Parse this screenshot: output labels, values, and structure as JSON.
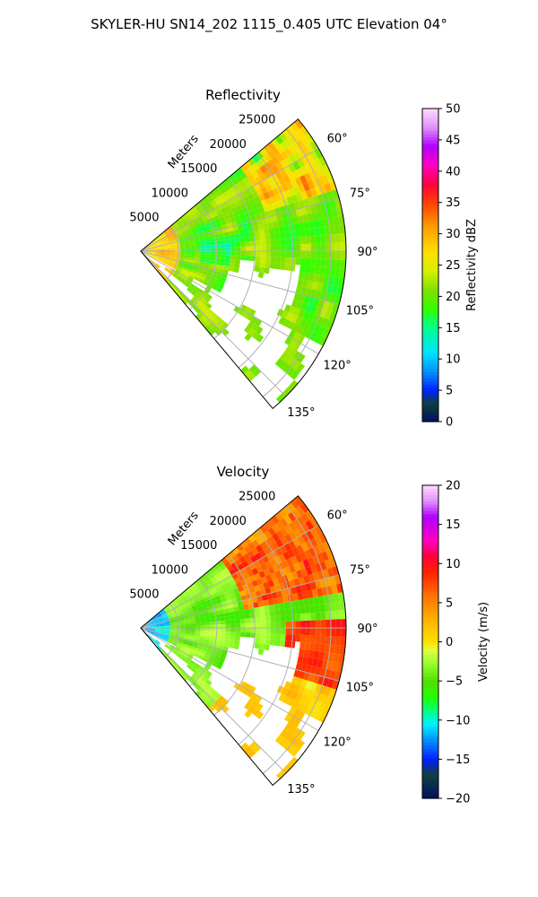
{
  "figure": {
    "suptitle": "SKYLER-HU  SN14_202  1115_0.405 UTC Elevation 04°"
  },
  "colors": {
    "grid": "#b0b0b0",
    "frame": "#000000"
  },
  "chart_data": [
    {
      "type": "heatmap",
      "projection": "polar-sector",
      "title": "Reflectivity",
      "range_label": "Meters",
      "range_ticks": [
        5000,
        10000,
        15000,
        20000,
        25000
      ],
      "range_tick_labels": [
        "5000",
        "10000",
        "15000",
        "20000",
        "25000"
      ],
      "rmax": 27000,
      "azimuth_range_deg": [
        50,
        140
      ],
      "azimuth_ticks": [
        60,
        75,
        90,
        105,
        120,
        135
      ],
      "azimuth_tick_labels": [
        "60°",
        "75°",
        "90°",
        "105°",
        "120°",
        "135°"
      ],
      "grid": true,
      "colorbar": {
        "label": "Reflectivity dBZ",
        "min": 0,
        "max": 50,
        "ticks": [
          0,
          5,
          10,
          15,
          20,
          25,
          30,
          35,
          40,
          45,
          50
        ],
        "tick_labels": [
          "0",
          "5",
          "10",
          "15",
          "20",
          "25",
          "30",
          "35",
          "40",
          "45",
          "50"
        ],
        "stops": [
          [
            0,
            "#001060"
          ],
          [
            3,
            "#104040"
          ],
          [
            5,
            "#0020ff"
          ],
          [
            8,
            "#0090ff"
          ],
          [
            11,
            "#00e0ff"
          ],
          [
            15,
            "#00ff90"
          ],
          [
            18,
            "#30ff00"
          ],
          [
            21,
            "#80e000"
          ],
          [
            24,
            "#d0f000"
          ],
          [
            27,
            "#ffe000"
          ],
          [
            31,
            "#ffa000"
          ],
          [
            35,
            "#ff4000"
          ],
          [
            38,
            "#ff0040"
          ],
          [
            41,
            "#ff00c0"
          ],
          [
            44,
            "#b000ff"
          ],
          [
            47,
            "#e090ff"
          ],
          [
            50,
            "#ffd8ff"
          ]
        ]
      },
      "field": {
        "base_value": 20,
        "spread": 4.5
      }
    },
    {
      "type": "heatmap",
      "projection": "polar-sector",
      "title": "Velocity",
      "range_label": "Meters",
      "range_ticks": [
        5000,
        10000,
        15000,
        20000,
        25000
      ],
      "range_tick_labels": [
        "5000",
        "10000",
        "15000",
        "20000",
        "25000"
      ],
      "rmax": 27000,
      "azimuth_range_deg": [
        50,
        140
      ],
      "azimuth_ticks": [
        60,
        75,
        90,
        105,
        120,
        135
      ],
      "azimuth_tick_labels": [
        "60°",
        "75°",
        "90°",
        "105°",
        "120°",
        "135°"
      ],
      "grid": true,
      "colorbar": {
        "label": "Velocity (m/s)",
        "min": -20,
        "max": 20,
        "ticks": [
          -20,
          -15,
          -10,
          -5,
          0,
          5,
          10,
          15,
          20
        ],
        "tick_labels": [
          "−20",
          "−15",
          "−10",
          "−5",
          "0",
          "5",
          "10",
          "15",
          "20"
        ],
        "stops": [
          [
            -20,
            "#001060"
          ],
          [
            -17,
            "#104040"
          ],
          [
            -15,
            "#0020ff"
          ],
          [
            -12.5,
            "#0090ff"
          ],
          [
            -10.5,
            "#00f0ff"
          ],
          [
            -9,
            "#00ff90"
          ],
          [
            -7,
            "#20ff00"
          ],
          [
            -5,
            "#50e000"
          ],
          [
            -2.5,
            "#a0ff30"
          ],
          [
            -1,
            "#e0ff40"
          ],
          [
            0,
            "#ffe000"
          ],
          [
            3,
            "#ffb000"
          ],
          [
            6,
            "#ff7000"
          ],
          [
            9,
            "#ff2000"
          ],
          [
            11,
            "#ff0040"
          ],
          [
            13,
            "#ff00c0"
          ],
          [
            16,
            "#b000ff"
          ],
          [
            18,
            "#e090ff"
          ],
          [
            20,
            "#ffd8ff"
          ]
        ]
      },
      "field": {
        "base_value": -4,
        "spread": 2.5
      }
    }
  ]
}
